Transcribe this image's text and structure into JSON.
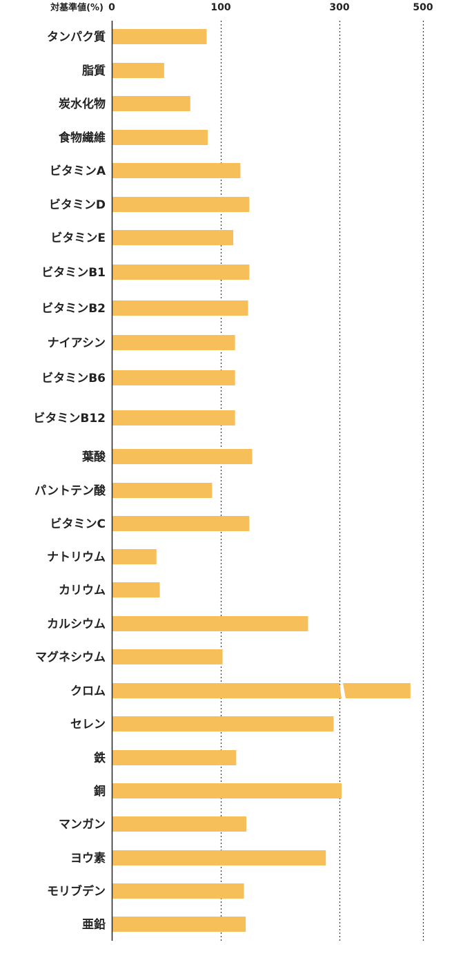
{
  "chart_data": {
    "type": "bar",
    "orientation": "horizontal",
    "axis_title": "対基準値(%)",
    "ticks": [
      "0",
      "100",
      "300",
      "500"
    ],
    "categories": [
      "タンパク質",
      "脂質",
      "炭水化物",
      "食物繊維",
      "ビタミンA",
      "ビタミンD",
      "ビタミンE",
      "ビタミンB1",
      "ビタミンB2",
      "ナイアシン",
      "ビタミンB6",
      "ビタミンB12",
      "葉酸",
      "パントテン酸",
      "ビタミンC",
      "ナトリウム",
      "カリウム",
      "カルシウム",
      "マグネシウム",
      "クロム",
      "セレン",
      "鉄",
      "銅",
      "マンガン",
      "ヨウ素",
      "モリブデン",
      "亜鉛"
    ],
    "values": [
      87,
      48,
      72,
      88,
      133,
      148,
      121,
      148,
      146,
      124,
      124,
      124,
      153,
      92,
      148,
      41,
      44,
      247,
      103,
      470,
      290,
      126,
      305,
      143,
      277,
      139,
      142
    ],
    "axis_breaks": {
      "0_100": "linear",
      "100_300": "compressed",
      "300_500": "compressed"
    },
    "broken_bar": "クロム",
    "grid": "dotted vertical lines at 100, 300, 500",
    "colors": {
      "bar": "#f7bf59",
      "axis": "#222222",
      "grid": "#333333"
    }
  }
}
